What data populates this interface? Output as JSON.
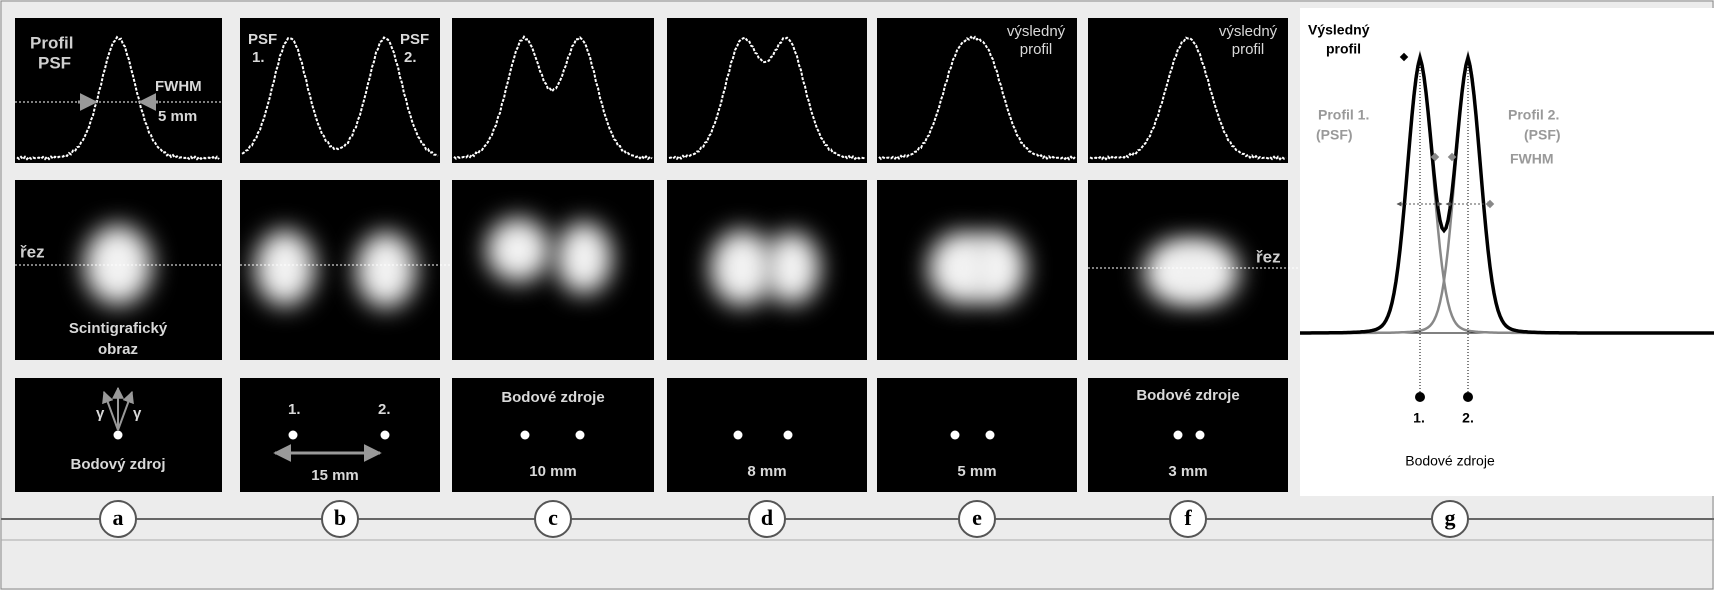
{
  "panels": [
    {
      "label": "a",
      "profile_title": [
        "Profil",
        "PSF"
      ],
      "fwhm": [
        "FWHM",
        "5 mm"
      ],
      "cut": "řez",
      "image_caption": [
        "Scintigrafický",
        "obraz"
      ],
      "gamma": [
        "γ",
        "γ"
      ],
      "source_caption": "Bodový zdroj"
    },
    {
      "label": "b",
      "psf_labels": [
        "PSF",
        "1.",
        "PSF",
        "2."
      ],
      "source_numbers": [
        "1.",
        "2."
      ],
      "distance": "15 mm"
    },
    {
      "label": "c",
      "source_caption": "Bodové zdroje",
      "distance": "10 mm"
    },
    {
      "label": "d",
      "distance": "8 mm"
    },
    {
      "label": "e",
      "profile_caption": [
        "výsledný",
        "profil"
      ],
      "distance": "5 mm"
    },
    {
      "label": "f",
      "profile_caption": [
        "výsledný",
        "profil"
      ],
      "cut": "řez",
      "source_caption": "Bodové zdroje",
      "distance": "3 mm"
    },
    {
      "label": "g",
      "result_profile": [
        "Výsledný",
        "profil"
      ],
      "profile_1": [
        "Profil 1.",
        "(PSF)"
      ],
      "profile_2": [
        "Profil 2.",
        "(PSF)"
      ],
      "fwhm": "FWHM",
      "source_numbers": [
        "1.",
        "2."
      ],
      "source_caption": "Bodové zdroje"
    }
  ]
}
